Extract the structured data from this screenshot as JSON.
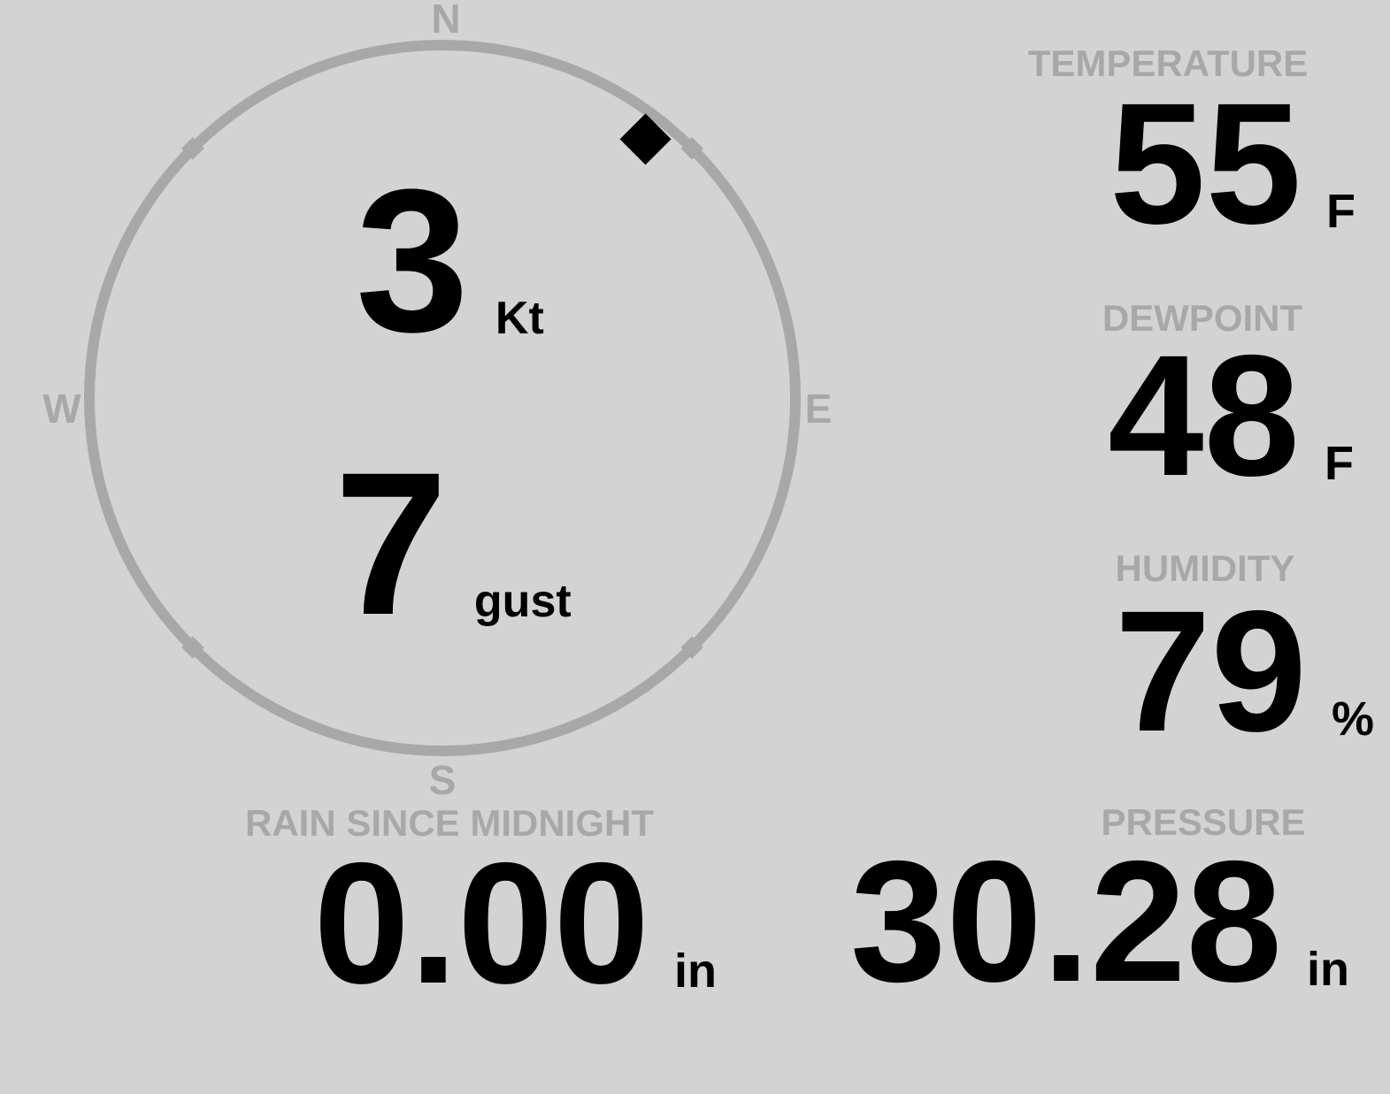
{
  "colors": {
    "background": "#d3d3d3",
    "muted_gray": "#a8a8a8",
    "value_black": "#000000"
  },
  "compass": {
    "cardinals": {
      "n": "N",
      "e": "E",
      "s": "S",
      "w": "W"
    },
    "wind": {
      "speed": "3",
      "speed_unit": "Kt",
      "gust": "7",
      "gust_unit": "gust",
      "direction_deg": 38
    }
  },
  "readings": {
    "temperature": {
      "label": "TEMPERATURE",
      "value": "55",
      "unit": "F"
    },
    "dewpoint": {
      "label": "DEWPOINT",
      "value": "48",
      "unit": "F"
    },
    "humidity": {
      "label": "HUMIDITY",
      "value": "79",
      "unit": "%"
    },
    "rain": {
      "label": "RAIN SINCE MIDNIGHT",
      "value": "0.00",
      "unit": "in"
    },
    "pressure": {
      "label": "PRESSURE",
      "value": "30.28",
      "unit": "in"
    }
  }
}
